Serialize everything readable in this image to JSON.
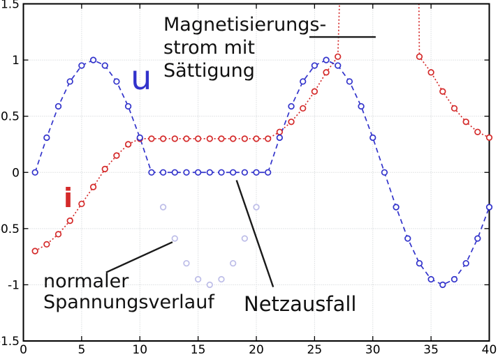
{
  "chart_data": {
    "type": "line",
    "title": "",
    "xlabel": "",
    "ylabel": "",
    "xlim": [
      0,
      40
    ],
    "ylim": [
      -1.5,
      1.5
    ],
    "grid": true,
    "legend_position": "none",
    "xticks": {
      "values": [
        0,
        5,
        10,
        15,
        20,
        25,
        30,
        35,
        40
      ],
      "labels": [
        "0",
        "5",
        "10",
        "15",
        "20",
        "25",
        "30",
        "35",
        "40"
      ]
    },
    "yticks": {
      "values": [
        -1.5,
        -1,
        -0.5,
        0,
        0.5,
        1,
        1.5
      ],
      "labels": [
        "-1.5",
        "-1",
        "-0.5",
        "0",
        "0.5",
        "1",
        "1.5"
      ]
    },
    "series": [
      {
        "name": "normaler Spannungsverlauf",
        "color": "#bdbde8",
        "line": "none",
        "marker": "circle",
        "x": [
          12,
          13,
          14,
          15,
          16,
          17,
          18,
          19,
          20
        ],
        "y": [
          -0.309,
          -0.588,
          -0.809,
          -0.951,
          -1.0,
          -0.951,
          -0.809,
          -0.588,
          -0.309
        ]
      },
      {
        "name": "i",
        "label": "Magnetisierungsstrom i",
        "color": "#d42a2a",
        "line": "dotted",
        "marker": "circle",
        "x": [
          1,
          2,
          3,
          4,
          5,
          6,
          7,
          8,
          9,
          10,
          11,
          12,
          13,
          14,
          15,
          16,
          17,
          18,
          19,
          20,
          21,
          22,
          23,
          24,
          25,
          26,
          27,
          28,
          29,
          30,
          31,
          32,
          33,
          34,
          35,
          36,
          37,
          38,
          39,
          40
        ],
        "y": [
          -0.7,
          -0.64,
          -0.55,
          -0.43,
          -0.28,
          -0.13,
          0.03,
          0.15,
          0.25,
          0.3,
          0.3,
          0.3,
          0.3,
          0.3,
          0.3,
          0.3,
          0.3,
          0.3,
          0.3,
          0.3,
          0.3,
          0.36,
          0.45,
          0.57,
          0.72,
          0.89,
          1.03,
          4.5,
          9,
          12,
          12,
          13,
          12,
          1.03,
          0.89,
          0.72,
          0.57,
          0.45,
          0.36,
          0.31
        ]
      },
      {
        "name": "u",
        "label": "Spannung u",
        "color": "#3233cb",
        "line": "dashed",
        "marker": "circle",
        "x": [
          1,
          2,
          3,
          4,
          5,
          6,
          7,
          8,
          9,
          10,
          11,
          12,
          13,
          14,
          15,
          16,
          17,
          18,
          19,
          20,
          21,
          22,
          23,
          24,
          25,
          26,
          27,
          28,
          29,
          30,
          31,
          32,
          33,
          34,
          35,
          36,
          37,
          38,
          39,
          40
        ],
        "y": [
          0,
          0.309,
          0.588,
          0.809,
          0.951,
          1.0,
          0.951,
          0.809,
          0.588,
          0.309,
          0,
          0,
          0,
          0,
          0,
          0,
          0,
          0,
          0,
          0,
          0,
          0.309,
          0.588,
          0.809,
          0.951,
          1.0,
          0.951,
          0.809,
          0.588,
          0.309,
          0,
          -0.309,
          -0.588,
          -0.809,
          -0.951,
          -1.0,
          -0.951,
          -0.809,
          -0.588,
          -0.309
        ]
      }
    ],
    "annotation_lines": [
      {
        "x1": 24.55,
        "y1": 1.205,
        "x2": 30.25,
        "y2": 1.205
      },
      {
        "x1": 7.1,
        "y1": -0.89,
        "x2": 12.8,
        "y2": -0.62
      },
      {
        "x1": 18.3,
        "y1": -0.07,
        "x2": 21.45,
        "y2": -1.02
      }
    ],
    "colors": {
      "grid": "#c6cbce",
      "border": "#000000",
      "annotation_line": "#1a1a1a",
      "tick_text": "#000000"
    }
  },
  "annotations": {
    "magnetisierung": "Magnetisierungs-\nstrom mit\nSättigung",
    "normaler_verlauf": "normaler\nSpannungsverlauf",
    "netzausfall": "Netzausfall"
  },
  "series_labels": {
    "u": "u",
    "i": "i"
  }
}
